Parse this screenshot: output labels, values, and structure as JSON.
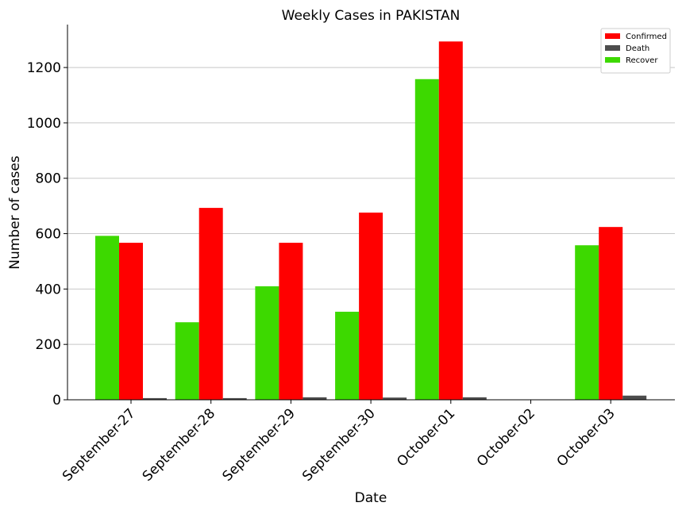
{
  "chart_data": {
    "type": "bar",
    "title": "Weekly Cases in PAKISTAN",
    "xlabel": "Date",
    "ylabel": "Number of cases",
    "categories": [
      "September-27",
      "September-28",
      "September-29",
      "September-30",
      "October-01",
      "October-02",
      "October-03"
    ],
    "series": [
      {
        "name": "Recover",
        "color": "#3dd900",
        "values": [
          592,
          280,
          410,
          318,
          1158,
          0,
          558
        ]
      },
      {
        "name": "Confirmed",
        "color": "#ff0000",
        "values": [
          567,
          693,
          567,
          676,
          1294,
          0,
          624
        ]
      },
      {
        "name": "Death",
        "color": "#4d4d4d",
        "values": [
          6,
          6,
          9,
          8,
          9,
          0,
          15
        ]
      }
    ],
    "legend_order": [
      "Confirmed",
      "Death",
      "Recover"
    ],
    "yticks": [
      0,
      200,
      400,
      600,
      800,
      1000,
      1200
    ],
    "ylim": [
      0,
      1355
    ],
    "grid": "y",
    "legend_position": "top-right"
  }
}
